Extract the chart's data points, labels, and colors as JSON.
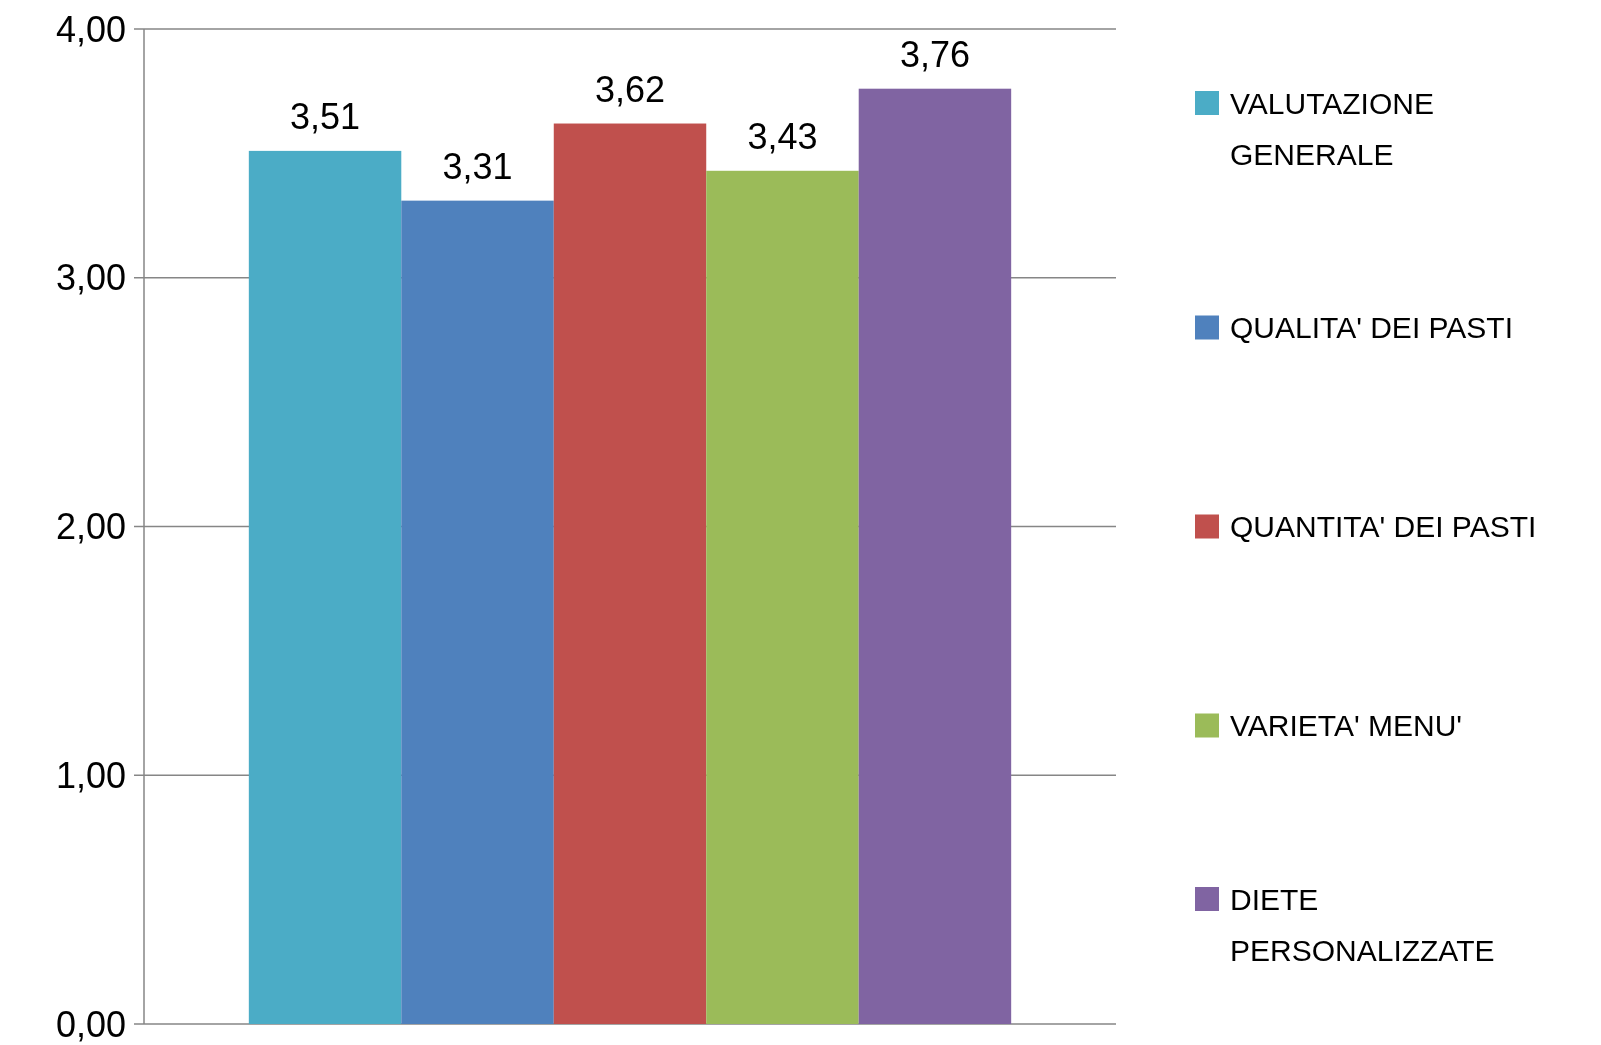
{
  "chart_data": {
    "type": "bar",
    "categories": [
      null
    ],
    "series": [
      {
        "name": "VALUTAZIONE GENERALE",
        "color": "#4bacc6",
        "values": [
          3.51
        ],
        "value_labels": [
          "3,51"
        ]
      },
      {
        "name": "QUALITA' DEI PASTI",
        "color": "#4f81bd",
        "values": [
          3.31
        ],
        "value_labels": [
          "3,31"
        ]
      },
      {
        "name": "QUANTITA' DEI PASTI",
        "color": "#c0504d",
        "values": [
          3.62
        ],
        "value_labels": [
          "3,62"
        ]
      },
      {
        "name": "VARIETA' MENU'",
        "color": "#9bbb59",
        "values": [
          3.43
        ],
        "value_labels": [
          "3,43"
        ]
      },
      {
        "name": "DIETE PERSONALIZZATE",
        "color": "#8064a2",
        "values": [
          3.76
        ],
        "value_labels": [
          "3,76"
        ]
      }
    ],
    "ylim": [
      0,
      4
    ],
    "yticks": [
      {
        "value": 0,
        "label": "0,00"
      },
      {
        "value": 1,
        "label": "1,00"
      },
      {
        "value": 2,
        "label": "2,00"
      },
      {
        "value": 3,
        "label": "3,00"
      },
      {
        "value": 4,
        "label": "4,00"
      }
    ],
    "grid": "y",
    "legend": "right"
  }
}
